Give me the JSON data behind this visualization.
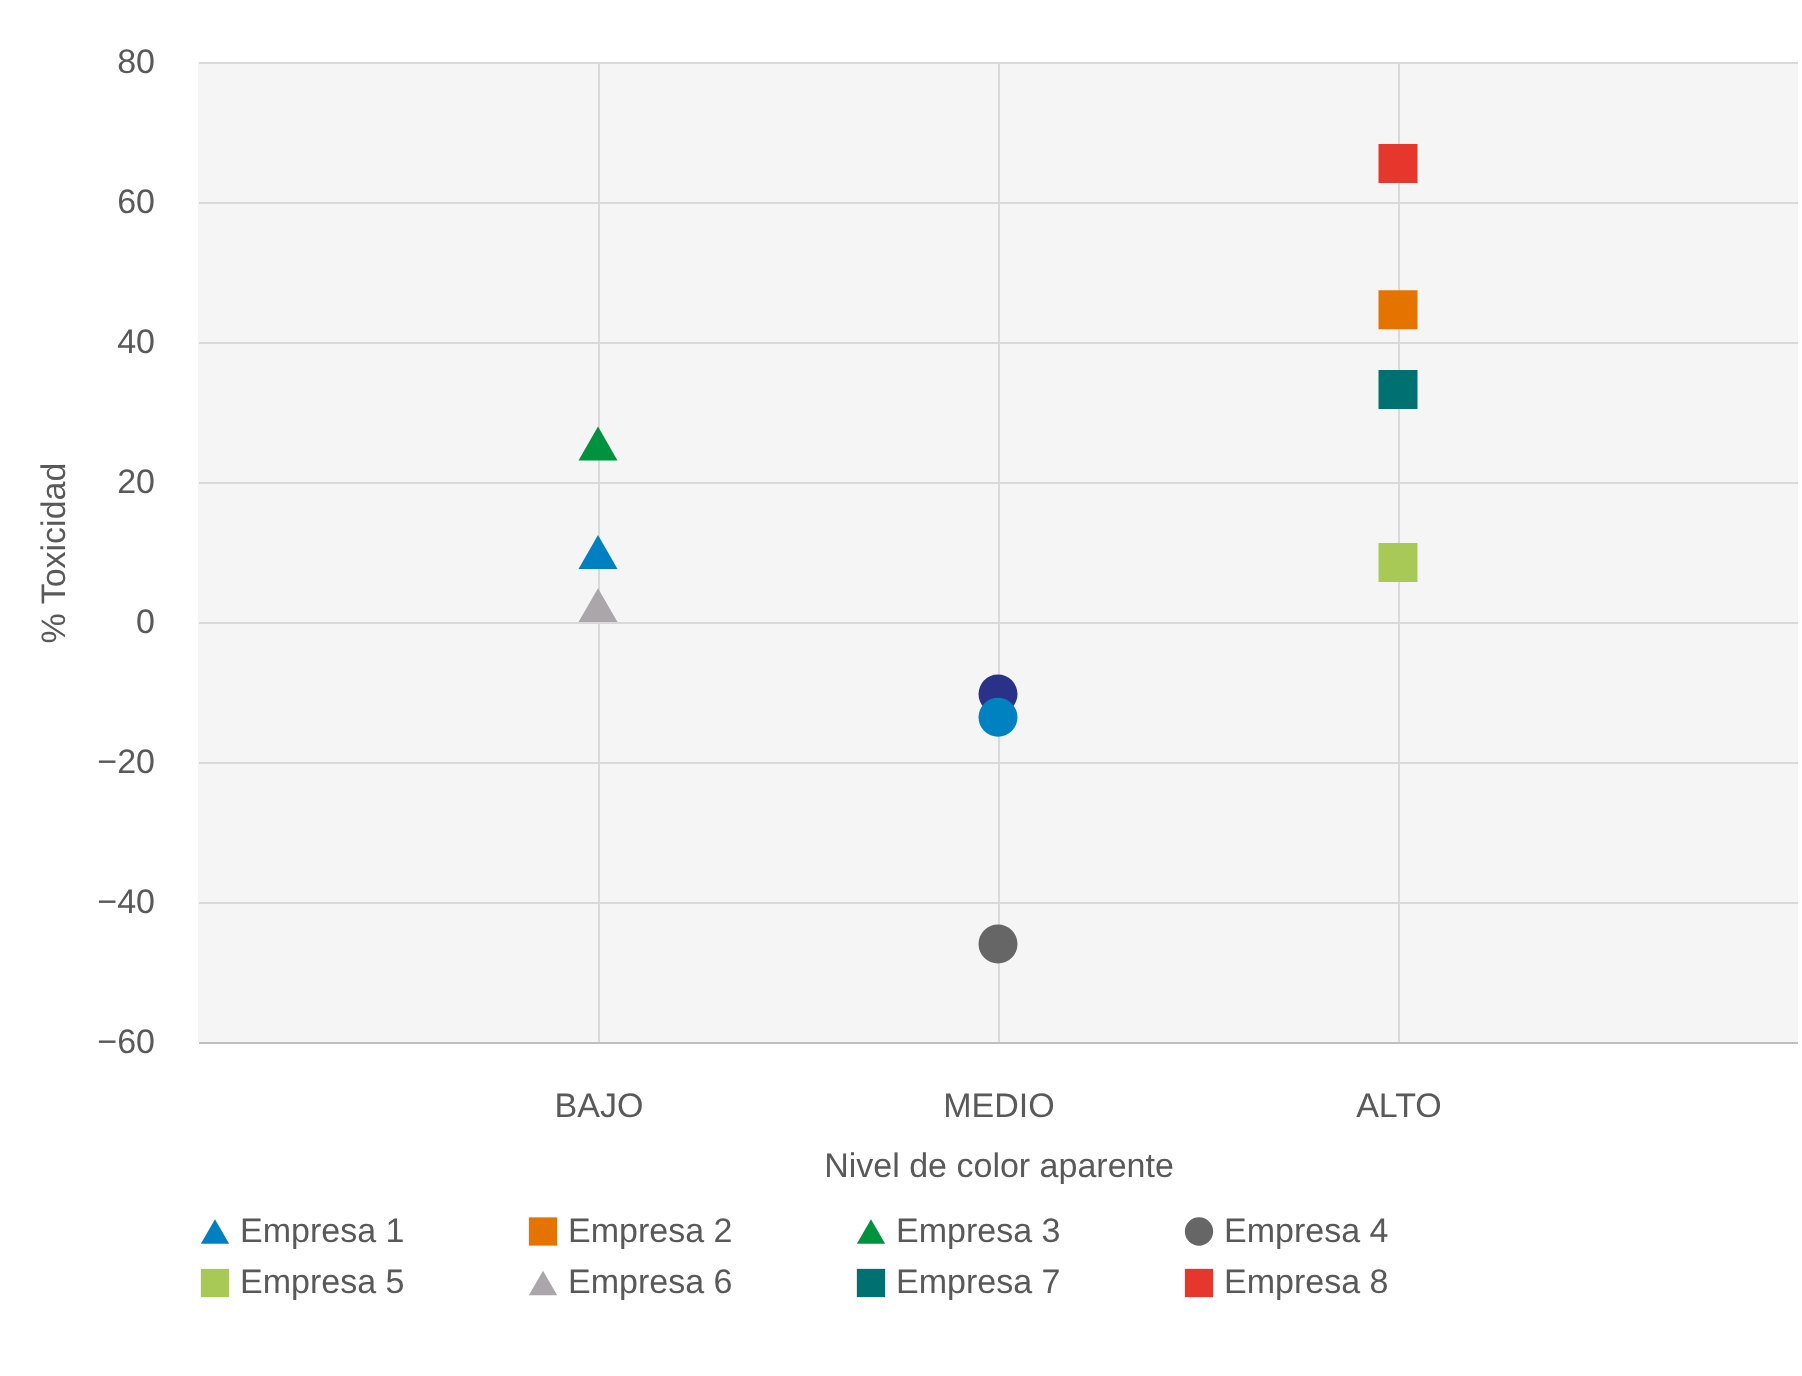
{
  "chart_data": {
    "type": "scatter",
    "xlabel": "Nivel de color aparente",
    "ylabel": "% Toxicidad",
    "categories": [
      "BAJO",
      "MEDIO",
      "ALTO"
    ],
    "ylim": [
      -60,
      80
    ],
    "yticks": [
      -60,
      -40,
      -20,
      0,
      20,
      40,
      60,
      80
    ],
    "grid": true,
    "legend": "bottom",
    "series": [
      {
        "name": "Empresa 1",
        "color": "#0080c0",
        "marker": "triangle",
        "x": [
          "BAJO"
        ],
        "values": [
          10
        ]
      },
      {
        "name": "Empresa 2",
        "color": "#e57300",
        "marker": "square",
        "x": [
          "ALTO"
        ],
        "values": [
          44.6
        ]
      },
      {
        "name": "Empresa 3",
        "color": "#00923f",
        "marker": "triangle",
        "x": [
          "BAJO"
        ],
        "values": [
          25.5
        ]
      },
      {
        "name": "Empresa 4",
        "color": "#666666",
        "marker": "circle",
        "x": [
          "MEDIO"
        ],
        "values": [
          -46
        ]
      },
      {
        "name": "Empresa 5",
        "color": "#a8c956",
        "marker": "square",
        "x": [
          "ALTO"
        ],
        "values": [
          8.5
        ]
      },
      {
        "name": "Empresa 6",
        "color": "#aaa6a9",
        "marker": "triangle",
        "x": [
          "BAJO"
        ],
        "values": [
          2.4
        ]
      },
      {
        "name": "Empresa 7",
        "color": "#007070",
        "marker": "square",
        "x": [
          "ALTO"
        ],
        "values": [
          33.2
        ]
      },
      {
        "name": "Empresa 8",
        "color": "#e5372c",
        "marker": "square",
        "x": [
          "ALTO"
        ],
        "values": [
          65.5
        ]
      },
      {
        "color": "#293189",
        "marker": "circle",
        "x": [
          "MEDIO"
        ],
        "values": [
          -10.3
        ]
      },
      {
        "color": "#0082c0",
        "marker": "circle",
        "x": [
          "MEDIO"
        ],
        "values": [
          -13.6
        ]
      }
    ]
  }
}
